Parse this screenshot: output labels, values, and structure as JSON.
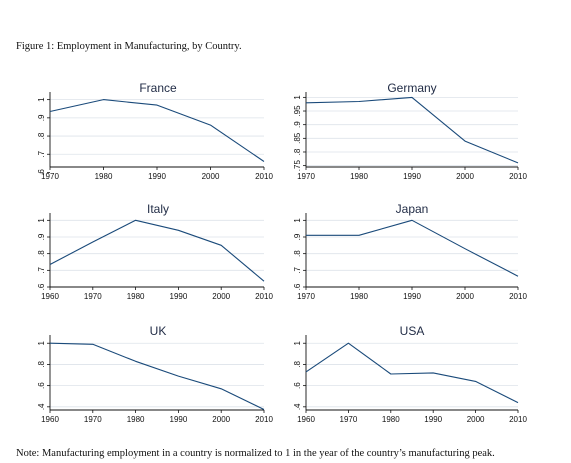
{
  "caption": "Figure 1: Employment in Manufacturing, by Country.",
  "note": "Note: Manufacturing employment in a country is normalized to 1 in the year of the country’s manufacturing peak.",
  "colors": {
    "line": "#1a4a7a",
    "grid": "#dde3ea",
    "axis": "#111111",
    "title": "#1f2a44"
  },
  "chart_data": [
    {
      "type": "line",
      "title": "France",
      "x": [
        1970,
        1980,
        1990,
        2000,
        2010
      ],
      "y": [
        0.935,
        1.0,
        0.97,
        0.86,
        0.66
      ],
      "xlim": [
        1970,
        2010
      ],
      "ylim": [
        0.63,
        1.02
      ],
      "xticks": [
        1970,
        1980,
        1990,
        2000,
        2010
      ],
      "xtick_labels": [
        "1970",
        "1980",
        "1990",
        "2000",
        "2010"
      ],
      "yticks": [
        0.6,
        0.7,
        0.8,
        0.9,
        1.0
      ],
      "ytick_labels": [
        ".6",
        ".7",
        ".8",
        ".9",
        "1"
      ],
      "grid": true
    },
    {
      "type": "line",
      "title": "Germany",
      "x": [
        1970,
        1980,
        1990,
        2000,
        2010
      ],
      "y": [
        0.98,
        0.985,
        1.0,
        0.84,
        0.76
      ],
      "xlim": [
        1970,
        2010
      ],
      "ylim": [
        0.745,
        1.005
      ],
      "xticks": [
        1970,
        1980,
        1990,
        2000,
        2010
      ],
      "xtick_labels": [
        "1970",
        "1980",
        "1990",
        "2000",
        "2010"
      ],
      "yticks": [
        0.75,
        0.8,
        0.85,
        0.9,
        0.95,
        1.0
      ],
      "ytick_labels": [
        ".75",
        ".8",
        ".85",
        ".9",
        ".95",
        "1"
      ],
      "grid": true
    },
    {
      "type": "line",
      "title": "Italy",
      "x": [
        1960,
        1970,
        1980,
        1990,
        2000,
        2010
      ],
      "y": [
        0.735,
        0.87,
        1.0,
        0.94,
        0.85,
        0.635
      ],
      "xlim": [
        1960,
        2010
      ],
      "ylim": [
        0.6,
        1.02
      ],
      "xticks": [
        1960,
        1970,
        1980,
        1990,
        2000,
        2010
      ],
      "xtick_labels": [
        "1960",
        "1970",
        "1980",
        "1990",
        "2000",
        "2010"
      ],
      "yticks": [
        0.6,
        0.7,
        0.8,
        0.9,
        1.0
      ],
      "ytick_labels": [
        ".6",
        ".7",
        ".8",
        ".9",
        "1"
      ],
      "grid": true
    },
    {
      "type": "line",
      "title": "Japan",
      "x": [
        1970,
        1980,
        1990,
        2000,
        2010
      ],
      "y": [
        0.91,
        0.91,
        1.0,
        0.83,
        0.665
      ],
      "xlim": [
        1970,
        2010
      ],
      "ylim": [
        0.6,
        1.02
      ],
      "xticks": [
        1970,
        1980,
        1990,
        2000,
        2010
      ],
      "xtick_labels": [
        "1970",
        "1980",
        "1990",
        "2000",
        "2010"
      ],
      "yticks": [
        0.6,
        0.7,
        0.8,
        0.9,
        1.0
      ],
      "ytick_labels": [
        ".6",
        ".7",
        ".8",
        ".9",
        "1"
      ],
      "grid": true
    },
    {
      "type": "line",
      "title": "UK",
      "x": [
        1960,
        1970,
        1980,
        1990,
        2000,
        2010
      ],
      "y": [
        1.0,
        0.99,
        0.83,
        0.69,
        0.57,
        0.375
      ],
      "xlim": [
        1960,
        2010
      ],
      "ylim": [
        0.37,
        1.04
      ],
      "xticks": [
        1960,
        1970,
        1980,
        1990,
        2000,
        2010
      ],
      "xtick_labels": [
        "1960",
        "1970",
        "1980",
        "1990",
        "2000",
        "2010"
      ],
      "yticks": [
        0.4,
        0.6,
        0.8,
        1.0
      ],
      "ytick_labels": [
        ".4",
        ".6",
        ".8",
        "1"
      ],
      "grid": true
    },
    {
      "type": "line",
      "title": "USA",
      "x": [
        1960,
        1970,
        1980,
        1990,
        2000,
        2010
      ],
      "y": [
        0.73,
        1.0,
        0.71,
        0.72,
        0.64,
        0.44
      ],
      "xlim": [
        1960,
        2010
      ],
      "ylim": [
        0.37,
        1.04
      ],
      "xticks": [
        1960,
        1970,
        1980,
        1990,
        2000,
        2010
      ],
      "xtick_labels": [
        "1960",
        "1970",
        "1980",
        "1990",
        "2000",
        "2010"
      ],
      "yticks": [
        0.4,
        0.6,
        0.8,
        1.0
      ],
      "ytick_labels": [
        ".4",
        ".6",
        ".8",
        "1"
      ],
      "grid": true
    }
  ]
}
